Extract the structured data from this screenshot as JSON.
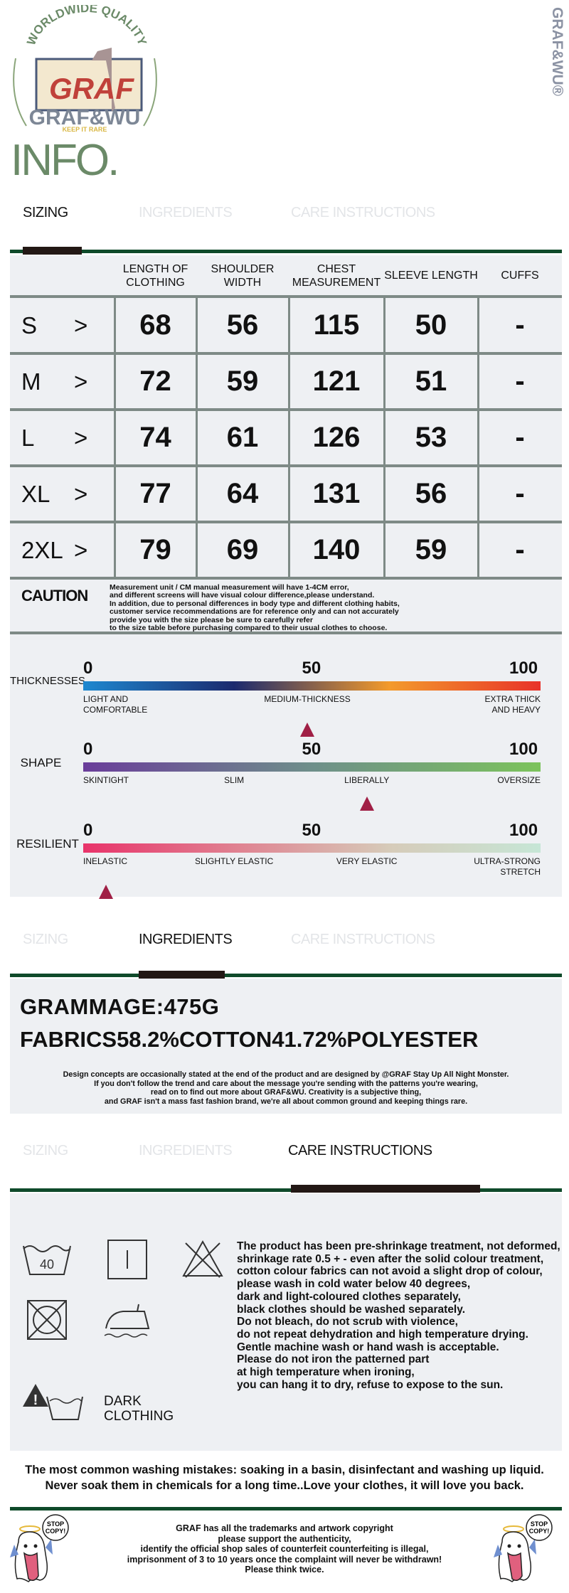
{
  "brand": {
    "arc": "WORLDWIDE QUALITY",
    "logo_main": "GRAF",
    "logo_sub": "GRAF&WU",
    "tagline": "KEEP IT RARE",
    "vertical": "GRAF&WU®"
  },
  "title": "INFO.",
  "tabs": [
    "SIZING",
    "INGREDIENTS",
    "CARE INSTRUCTIONS"
  ],
  "sizing": {
    "headers": [
      "LENGTH OF CLOTHING",
      "SHOULDER WIDTH",
      "CHEST MEASUREMENT",
      "SLEEVE LENGTH",
      "CUFFS"
    ],
    "arrow": ">",
    "rows": [
      {
        "size": "S",
        "values": [
          "68",
          "56",
          "115",
          "50",
          "-"
        ]
      },
      {
        "size": "M",
        "values": [
          "72",
          "59",
          "121",
          "51",
          "-"
        ]
      },
      {
        "size": "L",
        "values": [
          "74",
          "61",
          "126",
          "53",
          "-"
        ]
      },
      {
        "size": "XL",
        "values": [
          "77",
          "64",
          "131",
          "56",
          "-"
        ]
      },
      {
        "size": "2XL",
        "values": [
          "79",
          "69",
          "140",
          "59",
          "-"
        ]
      }
    ],
    "caution_title": "CAUTION",
    "caution_lines": [
      "Measurement unit / CM manual measurement will have 1-4CM error,",
      "and different screens will have visual colour difference,please understand.",
      "In addition, due to personal differences in body type and different clothing habits,",
      "customer service recommendations are for reference only and can not accurately",
      "provide you with the size please be sure to carefully refer",
      "to the size table before purchasing compared to their usual clothes to choose."
    ]
  },
  "scales": [
    {
      "name": "THICKNESSES",
      "ticks": [
        "0",
        "50",
        "100"
      ],
      "labels": [
        "LIGHT AND\nCOMFORTABLE",
        "MEDIUM-THICKNESS",
        "EXTRA THICK\nAND HEAVY"
      ],
      "value": 49,
      "colors": [
        "#1e88d0",
        "#1c2a6e",
        "#f39a2b",
        "#e8322a"
      ]
    },
    {
      "name": "SHAPE",
      "ticks": [
        "0",
        "50",
        "100"
      ],
      "labels": [
        "SKINTIGHT",
        "SLIM",
        "LIBERALLY",
        "OVERSIZE"
      ],
      "value": 62,
      "colors": [
        "#6a3d9a",
        "#6e8f8a",
        "#7cc35c"
      ]
    },
    {
      "name": "RESILIENT",
      "ticks": [
        "0",
        "50",
        "100"
      ],
      "labels": [
        "INELASTIC",
        "SLIGHTLY ELASTIC",
        "VERY ELASTIC",
        "ULTRA-STRONG\nSTRETCH"
      ],
      "value": 5,
      "colors": [
        "#e8336a",
        "#e08090",
        "#d6cbb9",
        "#c6e6d6"
      ]
    }
  ],
  "ingredients": {
    "grammage": "GRAMMAGE:475G",
    "fabrics": "FABRICS58.2%COTTON41.72%POLYESTER",
    "notes": [
      "Design concepts are occasionally stated at the end of the product and are designed by @GRAF Stay Up All Night Monster.",
      "If you don't follow the trend and care about the message you're sending with the patterns you're wearing,",
      "read on to find out more about GRAF&WU. Creativity is a subjective thing,",
      "and GRAF isn't a mass fast fashion brand, we're all about common ground and keeping things rare."
    ]
  },
  "care": {
    "wash_temp": "40",
    "dark_label": "DARK\nCLOTHING",
    "lines": [
      "The product has been pre-shrinkage treatment, not deformed,",
      "shrinkage rate 0.5 + - even after the solid colour treatment,",
      "cotton colour fabrics can not avoid a slight drop of colour,",
      "please wash in cold water below 40 degrees,",
      "dark and light-coloured clothes separately,",
      "black clothes should be washed separately.",
      "Do not bleach, do not scrub with violence,",
      "do not repeat dehydration and high temperature drying.",
      "Gentle machine wash or hand wash is acceptable.",
      "Please do not iron the patterned part",
      "at high temperature when ironing,",
      "you can hang it to dry, refuse to expose to the sun."
    ],
    "mistakes": [
      "The most common washing mistakes: soaking in a basin, disinfectant and washing up liquid.",
      "Never soak them in chemicals for a long time..Love your clothes, it will love you back."
    ]
  },
  "footer": {
    "sticker": "STOP\nCOPY!",
    "lines": [
      "GRAF has all the trademarks and artwork copyright",
      "please support the authenticity,",
      "identify the official shop sales of counterfeit counterfeiting is illegal,",
      "imprisonment of 3 to 10 years once the complaint will never be withdrawn!",
      "Please think twice."
    ]
  },
  "colors": {
    "accent_green": "#0f4a2a",
    "title_green": "#6b8a68",
    "marker": "#a01f45",
    "panel": "#eef0f3"
  }
}
